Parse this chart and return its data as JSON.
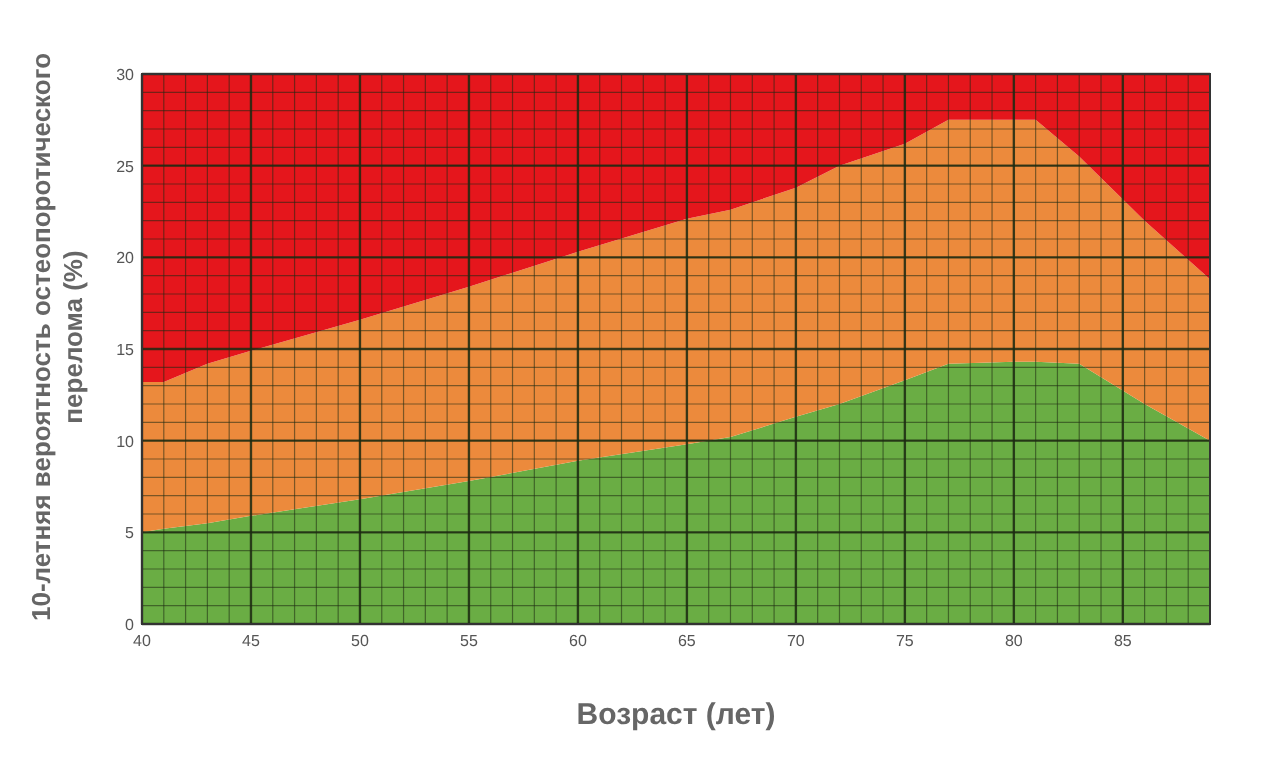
{
  "chart_data": {
    "type": "area",
    "stacked": true,
    "xlabel": "Возраст (лет)",
    "ylabel": "10-летняя вероятность остеопоротического\nперелома (%)",
    "x": [
      40,
      41,
      43,
      45,
      50,
      55,
      60,
      65,
      67,
      70,
      72,
      75,
      77,
      80,
      81,
      83,
      86,
      89
    ],
    "series": [
      {
        "color": "#6aad44",
        "values": [
          5.0,
          5.2,
          5.5,
          5.9,
          6.8,
          7.8,
          8.9,
          9.8,
          10.2,
          11.3,
          12.0,
          13.3,
          14.2,
          14.3,
          14.3,
          14.2,
          12.0,
          10.0
        ]
      },
      {
        "color": "#ec8a3c",
        "values": [
          8.2,
          8.0,
          8.7,
          9.0,
          9.8,
          10.6,
          11.4,
          12.3,
          12.4,
          12.5,
          13.0,
          12.9,
          13.3,
          13.2,
          13.2,
          11.3,
          10.0,
          8.8
        ]
      },
      {
        "color": "#e5161c",
        "values": [
          16.8,
          16.8,
          15.8,
          15.1,
          13.4,
          11.6,
          9.7,
          7.9,
          7.4,
          6.2,
          5.0,
          3.8,
          2.5,
          2.5,
          2.5,
          4.5,
          8.0,
          11.2
        ]
      }
    ],
    "xlim": [
      40,
      89
    ],
    "xticks": [
      40,
      45,
      50,
      55,
      60,
      65,
      70,
      75,
      80,
      85
    ],
    "ylim": [
      0,
      30
    ],
    "yticks": [
      0,
      5,
      10,
      15,
      20,
      25,
      30
    ],
    "grid": true
  }
}
